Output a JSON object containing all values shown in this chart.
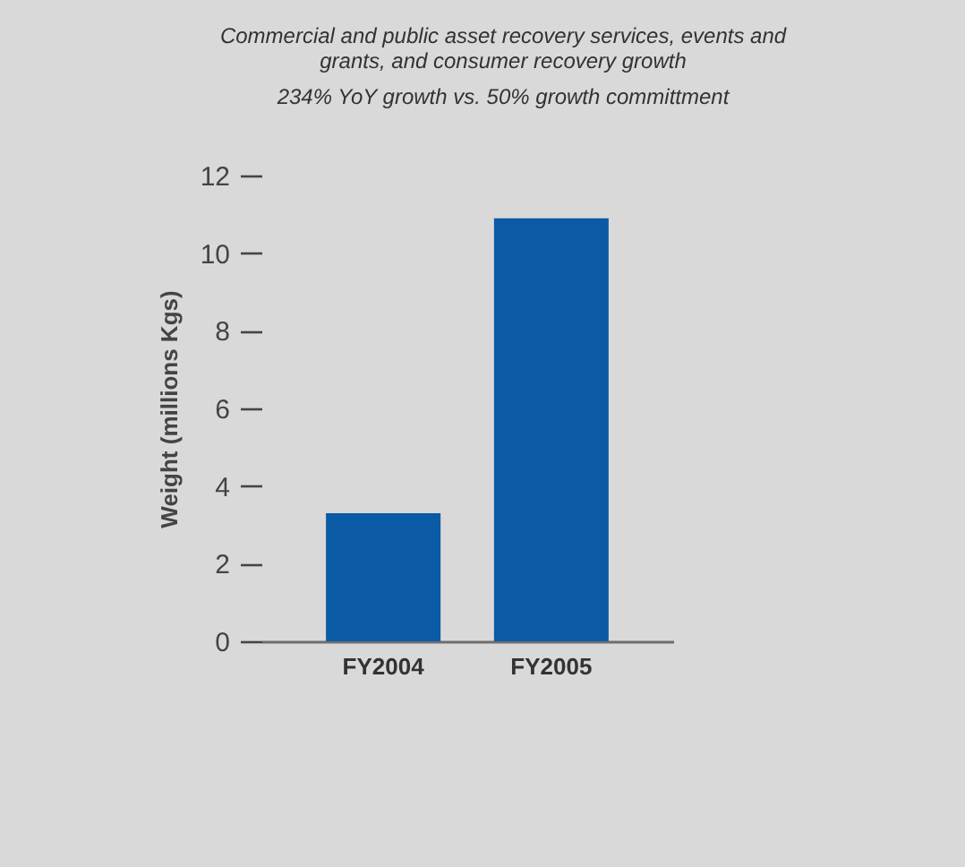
{
  "chart_data": {
    "type": "bar",
    "title": [
      "Commercial and public asset recovery services, events and",
      "grants, and consumer recovery growth"
    ],
    "subtitle": "234% YoY growth vs. 50% growth committment",
    "ylabel": "Weight (millions Kgs)",
    "categories": [
      "FY2004",
      "FY2005"
    ],
    "series": [
      {
        "color": "#0a5aa5",
        "values": [
          3.3,
          10.9
        ]
      }
    ],
    "ylim": [
      0,
      12
    ],
    "yticks": [
      0,
      2,
      4,
      6,
      8,
      10,
      12
    ]
  }
}
